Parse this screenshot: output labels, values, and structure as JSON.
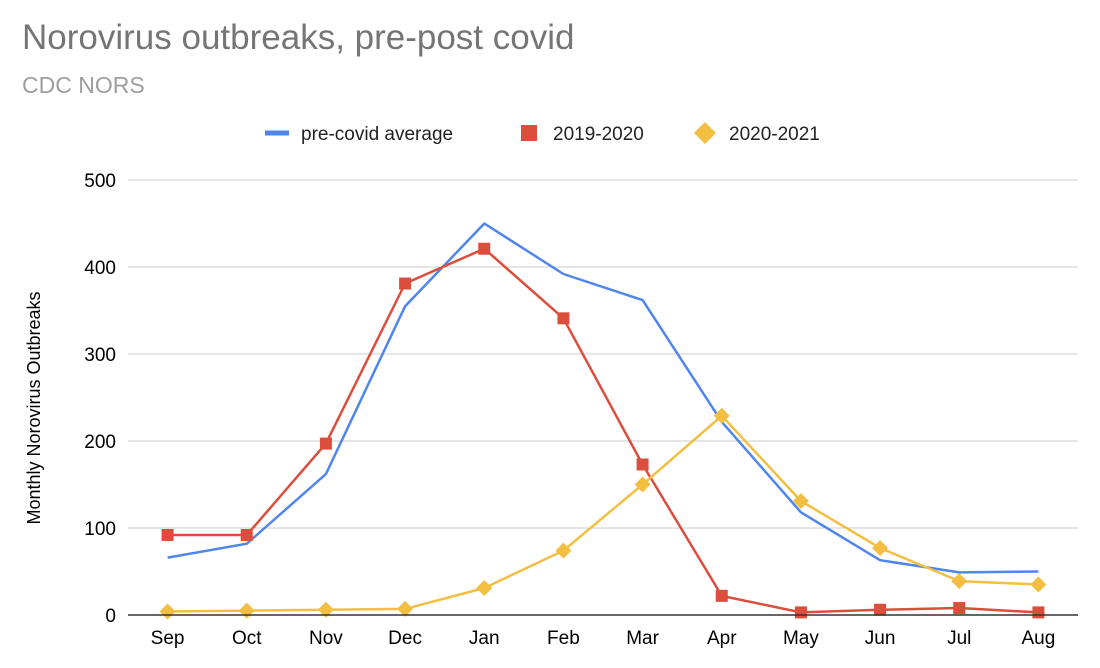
{
  "chart_data": {
    "type": "line",
    "title": "Norovirus outbreaks, pre-post covid",
    "subtitle": "CDC NORS",
    "xlabel": "",
    "ylabel": "Monthly Norovirus Outbreaks",
    "ylim": [
      0,
      500
    ],
    "yticks": [
      "0",
      "100",
      "200",
      "300",
      "400",
      "500"
    ],
    "grid": true,
    "legend_position": "top",
    "categories": [
      "Sep",
      "Oct",
      "Nov",
      "Dec",
      "Jan",
      "Feb",
      "Mar",
      "Apr",
      "May",
      "Jun",
      "Jul",
      "Aug"
    ],
    "series": [
      {
        "name": "pre-covid average",
        "color": "#4f86ec",
        "marker": "none",
        "values": [
          66,
          82,
          162,
          355,
          450,
          392,
          362,
          222,
          118,
          63,
          49,
          50
        ]
      },
      {
        "name": "2019-2020",
        "color": "#dd4d3c",
        "marker": "square",
        "values": [
          92,
          92,
          197,
          381,
          421,
          341,
          173,
          22,
          3,
          6,
          8,
          3
        ]
      },
      {
        "name": "2020-2021",
        "color": "#f2bf42",
        "marker": "diamond",
        "values": [
          4,
          5,
          6,
          7,
          31,
          74,
          150,
          229,
          131,
          77,
          39,
          35
        ]
      }
    ]
  }
}
